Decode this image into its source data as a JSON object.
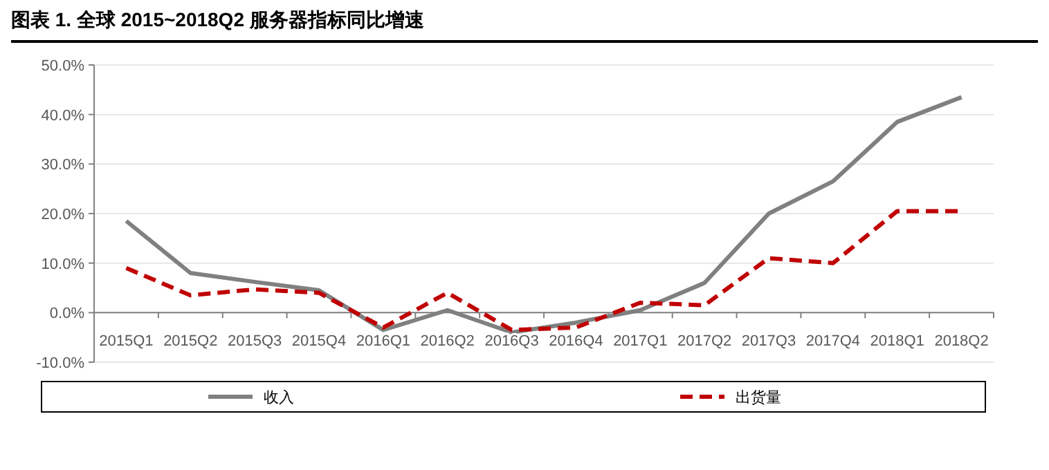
{
  "chart_data": {
    "type": "line",
    "title": "图表 1. 全球 2015~2018Q2 服务器指标同比增速",
    "categories": [
      "2015Q1",
      "2015Q2",
      "2015Q3",
      "2015Q4",
      "2016Q1",
      "2016Q2",
      "2016Q3",
      "2016Q4",
      "2017Q1",
      "2017Q2",
      "2017Q3",
      "2017Q4",
      "2018Q1",
      "2018Q2"
    ],
    "series": [
      {
        "name": "收入",
        "color": "#808080",
        "line_style": "solid",
        "values": [
          18.5,
          8,
          6.2,
          4.5,
          -3.5,
          0.5,
          -4,
          -2,
          0.5,
          6,
          20,
          26.5,
          38.5,
          43.5
        ]
      },
      {
        "name": "出货量",
        "color": "#c00000",
        "line_style": "dashed",
        "values": [
          9,
          3.5,
          4.7,
          4,
          -3,
          4,
          -3.5,
          -3,
          2,
          1.5,
          11,
          10,
          20.5,
          20.5
        ]
      }
    ],
    "ylim": [
      -10,
      50
    ],
    "yticks": [
      {
        "value": -10,
        "label": "-10.0%"
      },
      {
        "value": 0,
        "label": "0.0%"
      },
      {
        "value": 10,
        "label": "10.0%"
      },
      {
        "value": 20,
        "label": "20.0%"
      },
      {
        "value": 30,
        "label": "30.0%"
      },
      {
        "value": 40,
        "label": "40.0%"
      },
      {
        "value": 50,
        "label": "50.0%"
      }
    ],
    "grid": "y",
    "legend": "bottom",
    "marker": "none"
  }
}
